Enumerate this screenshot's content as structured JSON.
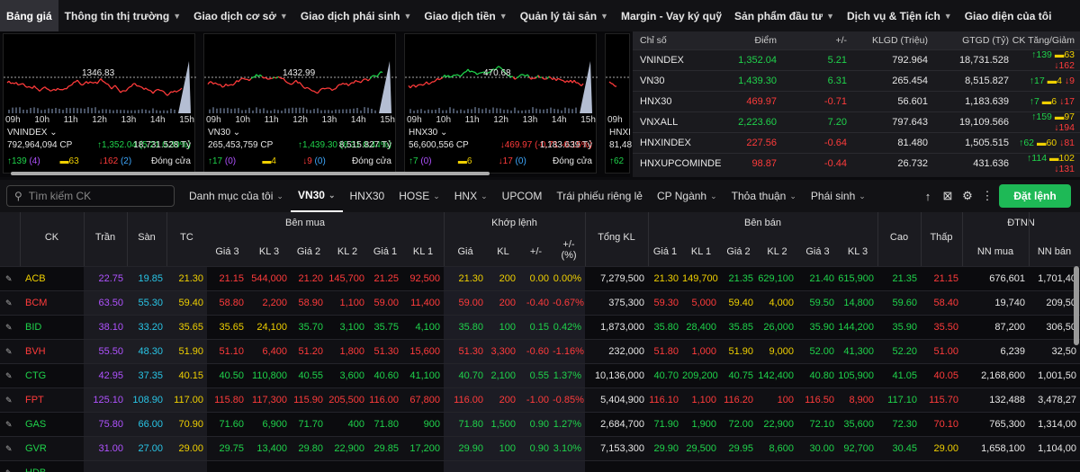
{
  "nav": [
    "Bảng giá",
    "Thông tin thị trường",
    "Giao dịch cơ sở",
    "Giao dịch phái sinh",
    "Giao dịch tiền",
    "Quản lý tài sản",
    "Margin - Vay ký quỹ",
    "Sản phẩm đầu tư",
    "Dịch vụ & Tiện ích",
    "Giao diện của tôi"
  ],
  "nav_chev": [
    false,
    true,
    true,
    true,
    true,
    true,
    false,
    true,
    true,
    false
  ],
  "minis": [
    {
      "name": "VNINDEX ⌄",
      "ref": "1346.83",
      "times": [
        "09h",
        "10h",
        "11h",
        "12h",
        "13h",
        "14h",
        "15h"
      ],
      "vol": "792,964,094 CP",
      "chg": "↑1,352.04 (5.21 0.39%)",
      "val": "18,731.528 Tỷ",
      "up": "↑139",
      "upc": "(4)",
      "flat": "▬63",
      "dn": "↓162",
      "dnf": "(2)",
      "status": "Đóng cửa",
      "chg_cls": "up"
    },
    {
      "name": "VN30 ⌄",
      "ref": "1432.99",
      "times": [
        "09h",
        "10h",
        "11h",
        "12h",
        "13h",
        "14h",
        "15h"
      ],
      "vol": "265,453,759 CP",
      "chg": "↑1,439.30 (6.31 0.44%)",
      "val": "8,515.827 Tỷ",
      "up": "↑17",
      "upc": "(0)",
      "flat": "▬4",
      "dn": "↓9",
      "dnf": "(0)",
      "status": "Đóng cửa",
      "chg_cls": "up"
    },
    {
      "name": "HNX30 ⌄",
      "ref": "470.68",
      "times": [
        "09h",
        "10h",
        "11h",
        "12h",
        "13h",
        "14h",
        "15h"
      ],
      "vol": "56,600,556 CP",
      "chg": "↓469.97 (-0.71 -0.15%)",
      "val": "1,183.639 Tỷ",
      "up": "↑7",
      "upc": "(0)",
      "flat": "▬6",
      "dn": "↓17",
      "dnf": "(0)",
      "status": "Đóng cửa",
      "chg_cls": "dn"
    },
    {
      "name": "HNXI",
      "ref": "",
      "times": [
        "09h"
      ],
      "vol": "81,48",
      "chg": "",
      "val": "",
      "up": "↑62",
      "upc": "",
      "flat": "",
      "dn": "",
      "dnf": "",
      "status": "",
      "chg_cls": "up"
    }
  ],
  "index_table": {
    "headers": [
      "Chỉ số",
      "Điểm",
      "+/-",
      "KLGD (Triệu)",
      "GTGD (Tỷ)",
      "CK Tăng/Giảm"
    ],
    "rows": [
      {
        "name": "VNINDEX",
        "point": "1,352.04",
        "chg": "5.21",
        "kl": "792.964",
        "gt": "18,731.528",
        "up": "↑139",
        "flat": "▬63",
        "dn": "↓162",
        "cls": "up"
      },
      {
        "name": "VN30",
        "point": "1,439.30",
        "chg": "6.31",
        "kl": "265.454",
        "gt": "8,515.827",
        "up": "↑17",
        "flat": "▬4",
        "dn": "↓9",
        "cls": "up"
      },
      {
        "name": "HNX30",
        "point": "469.97",
        "chg": "-0.71",
        "kl": "56.601",
        "gt": "1,183.639",
        "up": "↑7",
        "flat": "▬6",
        "dn": "↓17",
        "cls": "dn"
      },
      {
        "name": "VNXALL",
        "point": "2,223.60",
        "chg": "7.20",
        "kl": "797.643",
        "gt": "19,109.566",
        "up": "↑159",
        "flat": "▬97",
        "dn": "↓194",
        "cls": "up"
      },
      {
        "name": "HNXINDEX",
        "point": "227.56",
        "chg": "-0.64",
        "kl": "81.480",
        "gt": "1,505.515",
        "up": "↑62",
        "flat": "▬60",
        "dn": "↓81",
        "cls": "dn"
      },
      {
        "name": "HNXUPCOMINDE",
        "point": "98.87",
        "chg": "-0.44",
        "kl": "26.732",
        "gt": "431.636",
        "up": "↑114",
        "flat": "▬102",
        "dn": "↓131",
        "cls": "dn"
      }
    ]
  },
  "toolbar": {
    "search_placeholder": "Tìm kiếm CK",
    "tabs": [
      {
        "label": "Danh mục của tôi",
        "chev": true
      },
      {
        "label": "VN30",
        "chev": true,
        "active": true
      },
      {
        "label": "HNX30",
        "chev": false
      },
      {
        "label": "HOSE",
        "chev": true
      },
      {
        "label": "HNX",
        "chev": true
      },
      {
        "label": "UPCOM",
        "chev": false
      },
      {
        "label": "Trái phiếu riêng lẻ",
        "chev": false
      },
      {
        "label": "CP Ngành",
        "chev": true
      },
      {
        "label": "Thỏa thuận",
        "chev": true
      },
      {
        "label": "Phái sinh",
        "chev": true
      }
    ],
    "order_label": "Đặt lệnh"
  },
  "board": {
    "group_headers": {
      "buy": "Bên mua",
      "match": "Khớp lệnh",
      "sell": "Bên bán",
      "foreign": "ĐTNN"
    },
    "headers": [
      "CK",
      "Trần",
      "Sàn",
      "TC",
      "Giá 3",
      "KL 3",
      "Giá 2",
      "KL 2",
      "Giá 1",
      "KL 1",
      "Giá",
      "KL",
      "+/-",
      "+/-\n(%)",
      "Tổng KL",
      "Giá 1",
      "KL 1",
      "Giá 2",
      "KL 2",
      "Giá 3",
      "KL 3",
      "Cao",
      "Thấp",
      "NN mua",
      "NN bán"
    ],
    "rows": [
      {
        "ck": "ACB",
        "cls": "ref",
        "v": [
          "22.75",
          "19.85",
          "21.30",
          "21.15",
          "544,000",
          "21.20",
          "145,700",
          "21.25",
          "92,500",
          "21.30",
          "200",
          "0.00",
          "0.00%",
          "7,279,500",
          "21.30",
          "149,700",
          "21.35",
          "629,100",
          "21.40",
          "615,900",
          "21.35",
          "21.15",
          "676,601",
          "1,701,40"
        ],
        "c": [
          "pur",
          "cy",
          "ref",
          "dn",
          "dn",
          "dn",
          "dn",
          "dn",
          "dn",
          "ref",
          "ref",
          "ref",
          "ref",
          "w",
          "ref",
          "ref",
          "up",
          "up",
          "up",
          "up",
          "up",
          "dn",
          "w",
          "w"
        ]
      },
      {
        "ck": "BCM",
        "cls": "dn",
        "v": [
          "63.50",
          "55.30",
          "59.40",
          "58.80",
          "2,200",
          "58.90",
          "1,100",
          "59.00",
          "11,400",
          "59.00",
          "200",
          "-0.40",
          "-0.67%",
          "375,300",
          "59.30",
          "5,000",
          "59.40",
          "4,000",
          "59.50",
          "14,800",
          "59.60",
          "58.40",
          "19,740",
          "209,50"
        ],
        "c": [
          "pur",
          "cy",
          "ref",
          "dn",
          "dn",
          "dn",
          "dn",
          "dn",
          "dn",
          "dn",
          "dn",
          "dn",
          "dn",
          "w",
          "dn",
          "dn",
          "ref",
          "ref",
          "up",
          "up",
          "up",
          "dn",
          "w",
          "w"
        ]
      },
      {
        "ck": "BID",
        "cls": "up",
        "v": [
          "38.10",
          "33.20",
          "35.65",
          "35.65",
          "24,100",
          "35.70",
          "3,100",
          "35.75",
          "4,100",
          "35.80",
          "100",
          "0.15",
          "0.42%",
          "1,873,000",
          "35.80",
          "28,400",
          "35.85",
          "26,000",
          "35.90",
          "144,200",
          "35.90",
          "35.50",
          "87,200",
          "306,50"
        ],
        "c": [
          "pur",
          "cy",
          "ref",
          "ref",
          "ref",
          "up",
          "up",
          "up",
          "up",
          "up",
          "up",
          "up",
          "up",
          "w",
          "up",
          "up",
          "up",
          "up",
          "up",
          "up",
          "up",
          "dn",
          "w",
          "w"
        ]
      },
      {
        "ck": "BVH",
        "cls": "dn",
        "v": [
          "55.50",
          "48.30",
          "51.90",
          "51.10",
          "6,400",
          "51.20",
          "1,800",
          "51.30",
          "15,600",
          "51.30",
          "3,300",
          "-0.60",
          "-1.16%",
          "232,000",
          "51.80",
          "1,000",
          "51.90",
          "9,000",
          "52.00",
          "41,300",
          "52.20",
          "51.00",
          "6,239",
          "32,50"
        ],
        "c": [
          "pur",
          "cy",
          "ref",
          "dn",
          "dn",
          "dn",
          "dn",
          "dn",
          "dn",
          "dn",
          "dn",
          "dn",
          "dn",
          "w",
          "dn",
          "dn",
          "ref",
          "ref",
          "up",
          "up",
          "up",
          "dn",
          "w",
          "w"
        ]
      },
      {
        "ck": "CTG",
        "cls": "up",
        "v": [
          "42.95",
          "37.35",
          "40.15",
          "40.50",
          "110,800",
          "40.55",
          "3,600",
          "40.60",
          "41,100",
          "40.70",
          "2,100",
          "0.55",
          "1.37%",
          "10,136,000",
          "40.70",
          "209,200",
          "40.75",
          "142,400",
          "40.80",
          "105,900",
          "41.05",
          "40.05",
          "2,168,600",
          "1,001,50"
        ],
        "c": [
          "pur",
          "cy",
          "ref",
          "up",
          "up",
          "up",
          "up",
          "up",
          "up",
          "up",
          "up",
          "up",
          "up",
          "w",
          "up",
          "up",
          "up",
          "up",
          "up",
          "up",
          "up",
          "dn",
          "w",
          "w"
        ]
      },
      {
        "ck": "FPT",
        "cls": "dn",
        "v": [
          "125.10",
          "108.90",
          "117.00",
          "115.80",
          "117,300",
          "115.90",
          "205,500",
          "116.00",
          "67,800",
          "116.00",
          "200",
          "-1.00",
          "-0.85%",
          "5,404,900",
          "116.10",
          "1,100",
          "116.20",
          "100",
          "116.50",
          "8,900",
          "117.10",
          "115.70",
          "132,488",
          "3,478,27"
        ],
        "c": [
          "pur",
          "cy",
          "ref",
          "dn",
          "dn",
          "dn",
          "dn",
          "dn",
          "dn",
          "dn",
          "dn",
          "dn",
          "dn",
          "w",
          "dn",
          "dn",
          "dn",
          "dn",
          "dn",
          "dn",
          "up",
          "dn",
          "w",
          "w"
        ]
      },
      {
        "ck": "GAS",
        "cls": "up",
        "v": [
          "75.80",
          "66.00",
          "70.90",
          "71.60",
          "6,900",
          "71.70",
          "400",
          "71.80",
          "900",
          "71.80",
          "1,500",
          "0.90",
          "1.27%",
          "2,684,700",
          "71.90",
          "1,900",
          "72.00",
          "22,900",
          "72.10",
          "35,600",
          "72.30",
          "70.10",
          "765,300",
          "1,314,00"
        ],
        "c": [
          "pur",
          "cy",
          "ref",
          "up",
          "up",
          "up",
          "up",
          "up",
          "up",
          "up",
          "up",
          "up",
          "up",
          "w",
          "up",
          "up",
          "up",
          "up",
          "up",
          "up",
          "up",
          "dn",
          "w",
          "w"
        ]
      },
      {
        "ck": "GVR",
        "cls": "up",
        "v": [
          "31.00",
          "27.00",
          "29.00",
          "29.75",
          "13,400",
          "29.80",
          "22,900",
          "29.85",
          "17,200",
          "29.90",
          "100",
          "0.90",
          "3.10%",
          "7,153,300",
          "29.90",
          "29,500",
          "29.95",
          "8,600",
          "30.00",
          "92,700",
          "30.45",
          "29.00",
          "1,658,100",
          "1,104,00"
        ],
        "c": [
          "pur",
          "cy",
          "ref",
          "up",
          "up",
          "up",
          "up",
          "up",
          "up",
          "up",
          "up",
          "up",
          "up",
          "w",
          "up",
          "up",
          "up",
          "up",
          "up",
          "up",
          "up",
          "ref",
          "w",
          "w"
        ]
      },
      {
        "ck": "HDB",
        "cls": "up",
        "v": [
          "",
          "",
          "",
          "",
          "",
          "",
          "",
          "",
          "",
          "",
          "",
          "",
          "",
          "",
          "",
          "",
          "",
          "",
          "",
          "",
          "",
          "",
          "",
          ""
        ],
        "c": [
          "pur",
          "cy",
          "ref",
          "up",
          "up",
          "up",
          "up",
          "up",
          "up",
          "up",
          "up",
          "up",
          "up",
          "w",
          "up",
          "up",
          "up",
          "up",
          "up",
          "up",
          "up",
          "dn",
          "w",
          "w"
        ]
      }
    ]
  },
  "colors": {
    "up": "#1fd34b",
    "down": "#ff3b3b",
    "ref": "#f0d000",
    "ceil": "#b052ff",
    "floor": "#29c5e6",
    "accent": "#1eb956"
  }
}
